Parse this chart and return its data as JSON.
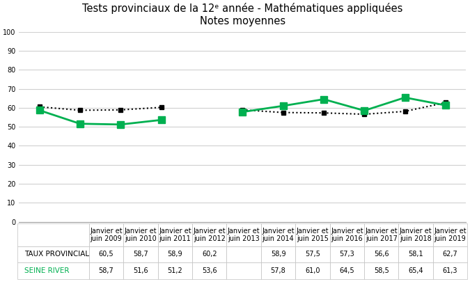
{
  "title_line1": "Tests provinciaux de la 12ᵉ année - Mathématiques appliquées",
  "title_line2": "Notes moyennes",
  "categories": [
    "Janvier et\njuin 2009",
    "Janvier et\njuin 2010",
    "Janvier et\njuin 2011",
    "Janvier et\njuin 2012",
    "Janvier et\njuin 2013",
    "Janvier et\njuin 2014",
    "Janvier et\njuin 2015",
    "Janvier et\njuin 2016",
    "Janvier et\njuin 2017",
    "Janvier et\njuin 2018",
    "Janvier et\njuin 2019"
  ],
  "categories_short": [
    "Janvier et\njuin 2009",
    "Janvier et\njuin 2010",
    "Janvier et\njuin 2011",
    "Janvier et\njuin 2012",
    "Janvier et\njuin 2013",
    "Janvier et\njuin 2014",
    "Janvier et\njuin 2015",
    "Janvier et\njuin 2016",
    "Janvier et\njuin 2017",
    "Janvier et\njuin 2018",
    "Janvier et\njuin 2019"
  ],
  "provincial": [
    60.5,
    58.7,
    58.9,
    60.2,
    null,
    58.9,
    57.5,
    57.3,
    56.6,
    58.1,
    62.7
  ],
  "seine_river": [
    58.7,
    51.6,
    51.2,
    53.6,
    null,
    57.8,
    61.0,
    64.5,
    58.5,
    65.4,
    61.3
  ],
  "provincial_str": [
    "60,5",
    "58,7",
    "58,9",
    "60,2",
    "",
    "58,9",
    "57,5",
    "57,3",
    "56,6",
    "58,1",
    "62,7"
  ],
  "seine_str": [
    "58,7",
    "51,6",
    "51,2",
    "53,6",
    "",
    "57,8",
    "61,0",
    "64,5",
    "58,5",
    "65,4",
    "61,3"
  ],
  "provincial_color": "#000000",
  "seine_river_color": "#00B050",
  "ylim": [
    0,
    100
  ],
  "yticks": [
    0,
    10,
    20,
    30,
    40,
    50,
    60,
    70,
    80,
    90,
    100
  ],
  "background_color": "#FFFFFF",
  "grid_color": "#D0D0D0",
  "legend_provincial": "TAUX PROVINCIAL",
  "legend_seine": "SEINE RIVER",
  "title_fontsize": 10.5,
  "tick_fontsize": 7,
  "table_fontsize": 7,
  "legend_fontsize": 7.5
}
